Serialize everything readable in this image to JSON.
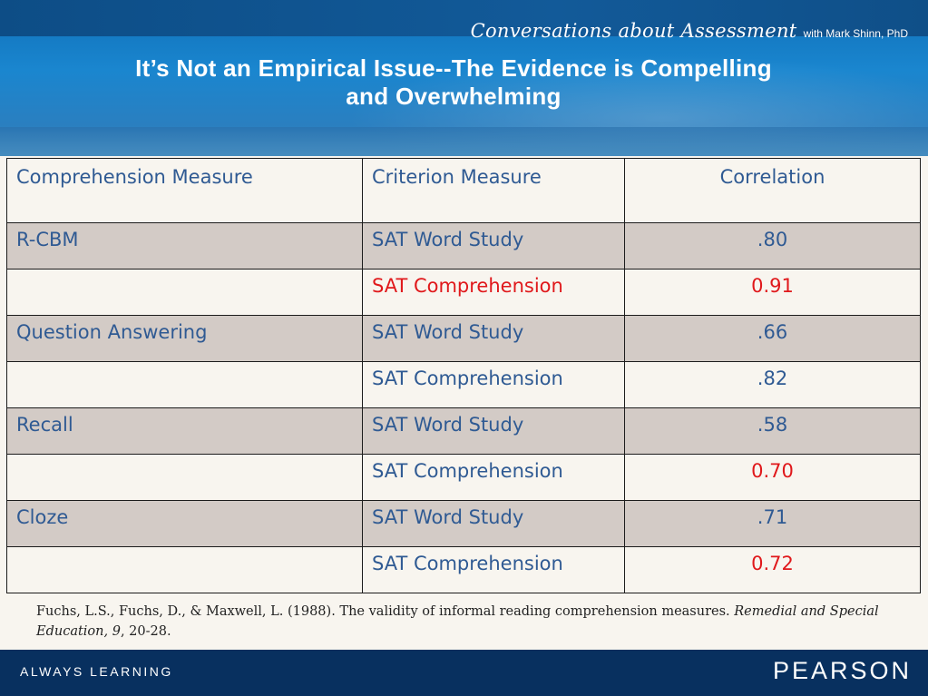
{
  "header": {
    "brand_script": "Conversations about Assessment",
    "brand_suffix": "with Mark Shinn, PhD",
    "title_line1": "It’s Not an Empirical Issue--The Evidence is Compelling",
    "title_line2": "and Overwhelming"
  },
  "table": {
    "headers": [
      "Comprehension Measure",
      "Criterion Measure",
      "Correlation"
    ],
    "rows": [
      {
        "measure": "R-CBM",
        "criterion": "SAT Word Study",
        "correlation": ".80",
        "highlight": false
      },
      {
        "measure": "",
        "criterion": "SAT Comprehension",
        "correlation": "0.91",
        "highlight": true
      },
      {
        "measure": "Question Answering",
        "criterion": "SAT Word Study",
        "correlation": ".66",
        "highlight": false
      },
      {
        "measure": "",
        "criterion": "SAT Comprehension",
        "correlation": ".82",
        "highlight": false
      },
      {
        "measure": "Recall",
        "criterion": "SAT Word Study",
        "correlation": ".58",
        "highlight": false
      },
      {
        "measure": "",
        "criterion": "SAT Comprehension",
        "correlation": "0.70",
        "highlight": "value"
      },
      {
        "measure": "Cloze",
        "criterion": "SAT Word Study",
        "correlation": ".71",
        "highlight": false
      },
      {
        "measure": "",
        "criterion": "SAT Comprehension",
        "correlation": "0.72",
        "highlight": "value"
      }
    ]
  },
  "citation": {
    "text": "Fuchs, L.S., Fuchs, D., & Maxwell, L. (1988). The validity of informal reading comprehension measures. ",
    "journal": "Remedial and Special Education, 9",
    "pages": ", 20-28."
  },
  "footer": {
    "tagline": "ALWAYS LEARNING",
    "logo": "PEARSON"
  },
  "colors": {
    "text_blue": "#2f5a93",
    "highlight_red": "#e0181b",
    "row_shade": "#d3cbc6",
    "footer_navy": "#08305f"
  }
}
